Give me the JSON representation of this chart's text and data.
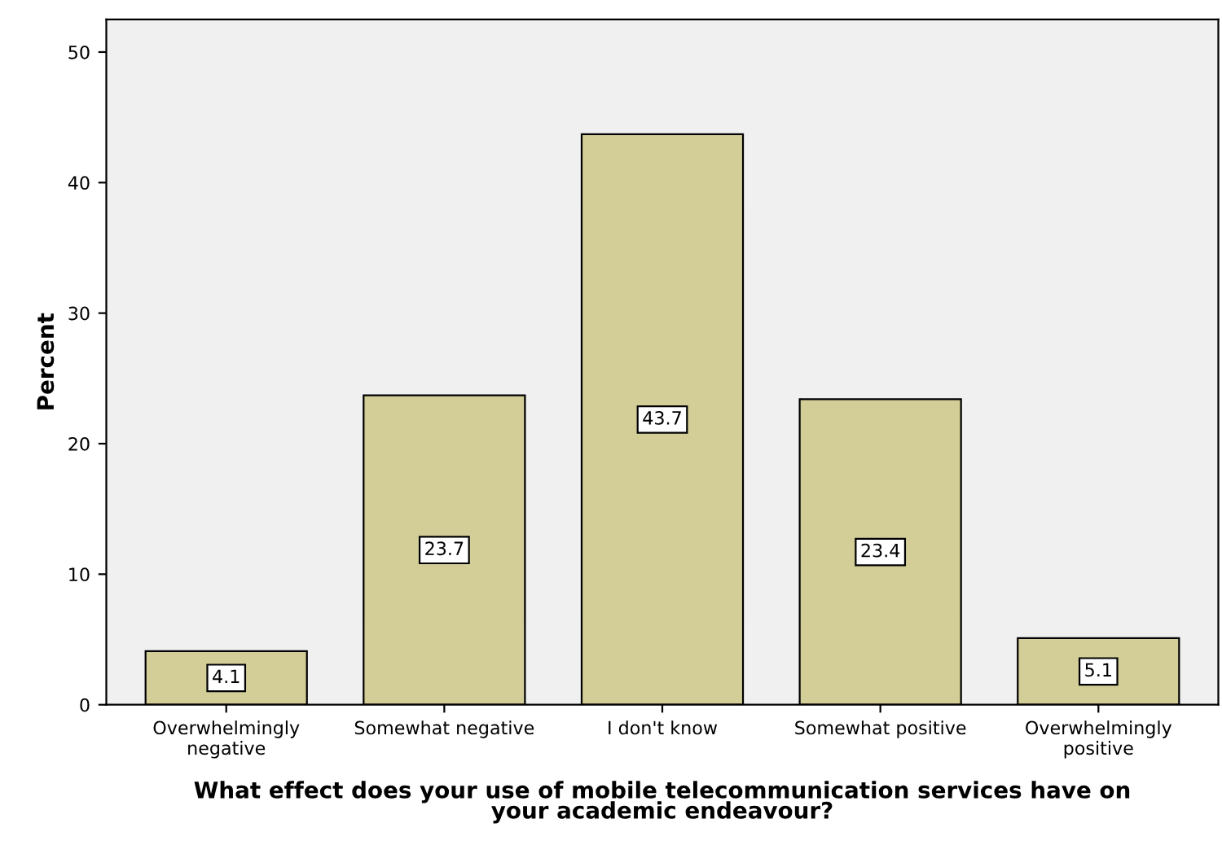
{
  "chart_data": {
    "type": "bar",
    "xlabel": "What effect does your use of mobile telecommunication services have on\nyour academic endeavour?",
    "ylabel": "Percent",
    "categories": [
      "Overwhelmingly\nnegative",
      "Somewhat negative",
      "I don't know",
      "Somewhat positive",
      "Overwhelmingly\npositive"
    ],
    "values": [
      4.1,
      23.7,
      43.7,
      23.4,
      5.1
    ],
    "color": "#d3ce97",
    "ylim": [
      0,
      52.5
    ],
    "yticks": [
      0,
      10,
      20,
      30,
      40,
      50
    ],
    "data_labels": true,
    "grid": false,
    "legend": false
  }
}
